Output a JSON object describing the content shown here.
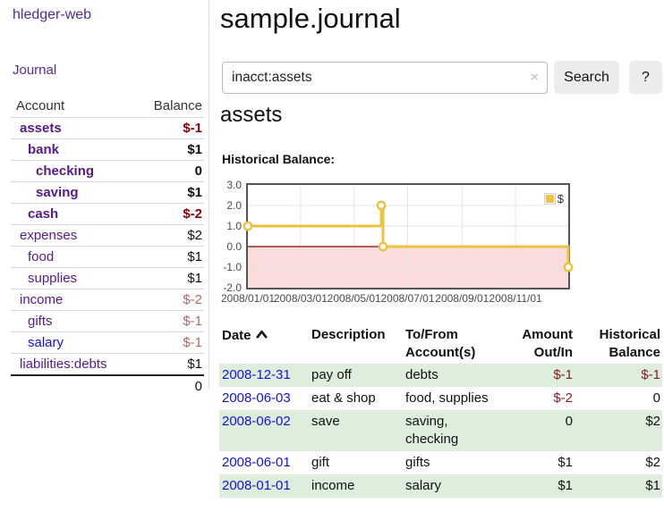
{
  "sidebar": {
    "brand": "hledger-web",
    "journal_link": "Journal",
    "accounts": {
      "headers": {
        "account": "Account",
        "balance": "Balance"
      },
      "rows": [
        {
          "name": "assets",
          "balance": "$-1"
        },
        {
          "name": "bank",
          "balance": "$1"
        },
        {
          "name": "checking",
          "balance": "0"
        },
        {
          "name": "saving",
          "balance": "$1"
        },
        {
          "name": "cash",
          "balance": "$-2"
        },
        {
          "name": "expenses",
          "balance": "$2"
        },
        {
          "name": "food",
          "balance": "$1"
        },
        {
          "name": "supplies",
          "balance": "$1"
        },
        {
          "name": "income",
          "balance": "$-2"
        },
        {
          "name": "gifts",
          "balance": "$-1"
        },
        {
          "name": "salary",
          "balance": "$-1"
        },
        {
          "name": "liabilities:debts",
          "balance": "$1"
        }
      ],
      "total": "0"
    }
  },
  "header": {
    "title": "sample.journal"
  },
  "search": {
    "value": "inacct:assets",
    "clear_icon": "×",
    "search_label": "Search",
    "help_label": "?"
  },
  "account_page": {
    "heading": "assets",
    "chart_label": "Historical Balance:"
  },
  "chart_data": {
    "type": "line",
    "step": true,
    "title": "Historical Balance",
    "series": [
      {
        "name": "$",
        "color": "#edc240",
        "points": [
          [
            "2008-01-01",
            1
          ],
          [
            "2008-06-01",
            2
          ],
          [
            "2008-06-03",
            0
          ],
          [
            "2008-12-31",
            -1
          ]
        ]
      }
    ],
    "xlim": [
      "2008-01-01",
      "2008-12-31"
    ],
    "ylim": [
      -2,
      3
    ],
    "yticks": [
      "3.0",
      "2.0",
      "1.0",
      "0.0",
      "-1.0",
      "-2.0"
    ],
    "xticks": [
      {
        "date": "2008-01-01",
        "label": "2008/01/01"
      },
      {
        "date": "2008-03-01",
        "label": "2008/03/01"
      },
      {
        "date": "2008-05-01",
        "label": "2008/05/01"
      },
      {
        "date": "2008-07-01",
        "label": "2008/07/01"
      },
      {
        "date": "2008-09-01",
        "label": "2008/09/01"
      },
      {
        "date": "2008-11-01",
        "label": "2008/11/01"
      }
    ],
    "grid_color": "#e6e6e6",
    "zero_line_color": "#8b0000",
    "negative_region_color": "#fbdcdc",
    "legend": {
      "label": "$",
      "position": "top-right"
    }
  },
  "register": {
    "columns": [
      "Date",
      "Description",
      "To/From Account(s)",
      "Amount Out/In",
      "Historical Balance"
    ],
    "rows": [
      {
        "date": "2008-12-31",
        "description": "pay off",
        "accounts": "debts",
        "amount": "$-1",
        "balance": "$-1"
      },
      {
        "date": "2008-06-03",
        "description": "eat & shop",
        "accounts": "food, supplies",
        "amount": "$-2",
        "balance": "0"
      },
      {
        "date": "2008-06-02",
        "description": "save",
        "accounts": "saving, checking",
        "amount": "0",
        "balance": "$2"
      },
      {
        "date": "2008-06-01",
        "description": "gift",
        "accounts": "gifts",
        "amount": "$1",
        "balance": "$2"
      },
      {
        "date": "2008-01-01",
        "description": "income",
        "accounts": "salary",
        "amount": "$1",
        "balance": "$1"
      }
    ]
  }
}
